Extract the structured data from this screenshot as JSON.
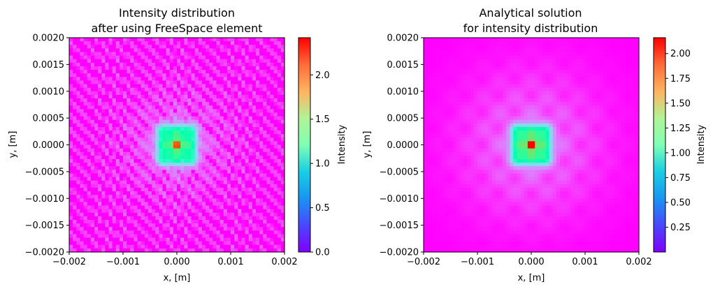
{
  "chart_data": [
    {
      "type": "heatmap",
      "title_lines": [
        "Intensity distribution",
        "after using FreeSpace element"
      ],
      "xlabel": "x, [m]",
      "ylabel": "y, [m]",
      "xlim": [
        -0.002,
        0.002
      ],
      "ylim": [
        -0.002,
        0.002
      ],
      "xticks": [
        "−0.002",
        "−0.001",
        "0.000",
        "0.001",
        "0.002"
      ],
      "yticks": [
        "0.0020",
        "0.0015",
        "0.0010",
        "0.0005",
        "0.0000",
        "−0.0005",
        "−0.0010",
        "−0.0015",
        "−0.0020"
      ],
      "colorbar": {
        "label": "Intensity",
        "range": [
          0.0,
          2.42
        ],
        "ticks": [
          0.0,
          0.5,
          1.0,
          1.5,
          2.0
        ],
        "tick_labels": [
          "0.0",
          "0.5",
          "1.0",
          "1.5",
          "2.0"
        ]
      },
      "colormap": "rainbow",
      "field": {
        "center": [
          0.0,
          0.0
        ],
        "core_half_width": 0.0003,
        "core_level": 1.2,
        "peak": 2.42,
        "speckle": true
      }
    },
    {
      "type": "heatmap",
      "title_lines": [
        "Analytical solution",
        "for intensity distribution"
      ],
      "xlabel": "x, [m]",
      "ylabel": "y, [m]",
      "xlim": [
        -0.002,
        0.002
      ],
      "ylim": [
        -0.002,
        0.002
      ],
      "xticks": [
        "−0.002",
        "−0.001",
        "0.000",
        "0.001",
        "0.002"
      ],
      "yticks": [
        "0.0020",
        "0.0015",
        "0.0010",
        "0.0005",
        "0.0000",
        "−0.0005",
        "−0.0010",
        "−0.0015",
        "−0.0020"
      ],
      "colorbar": {
        "label": "Intensity",
        "range": [
          0.0,
          2.16
        ],
        "ticks": [
          0.25,
          0.5,
          0.75,
          1.0,
          1.25,
          1.5,
          1.75,
          2.0
        ],
        "tick_labels": [
          "0.25",
          "0.50",
          "0.75",
          "1.00",
          "1.25",
          "1.50",
          "1.75",
          "2.00"
        ]
      },
      "colormap": "rainbow",
      "field": {
        "center": [
          0.0,
          0.0
        ],
        "core_half_width": 0.0003,
        "core_level": 1.2,
        "peak": 2.16,
        "speckle": false
      }
    }
  ]
}
